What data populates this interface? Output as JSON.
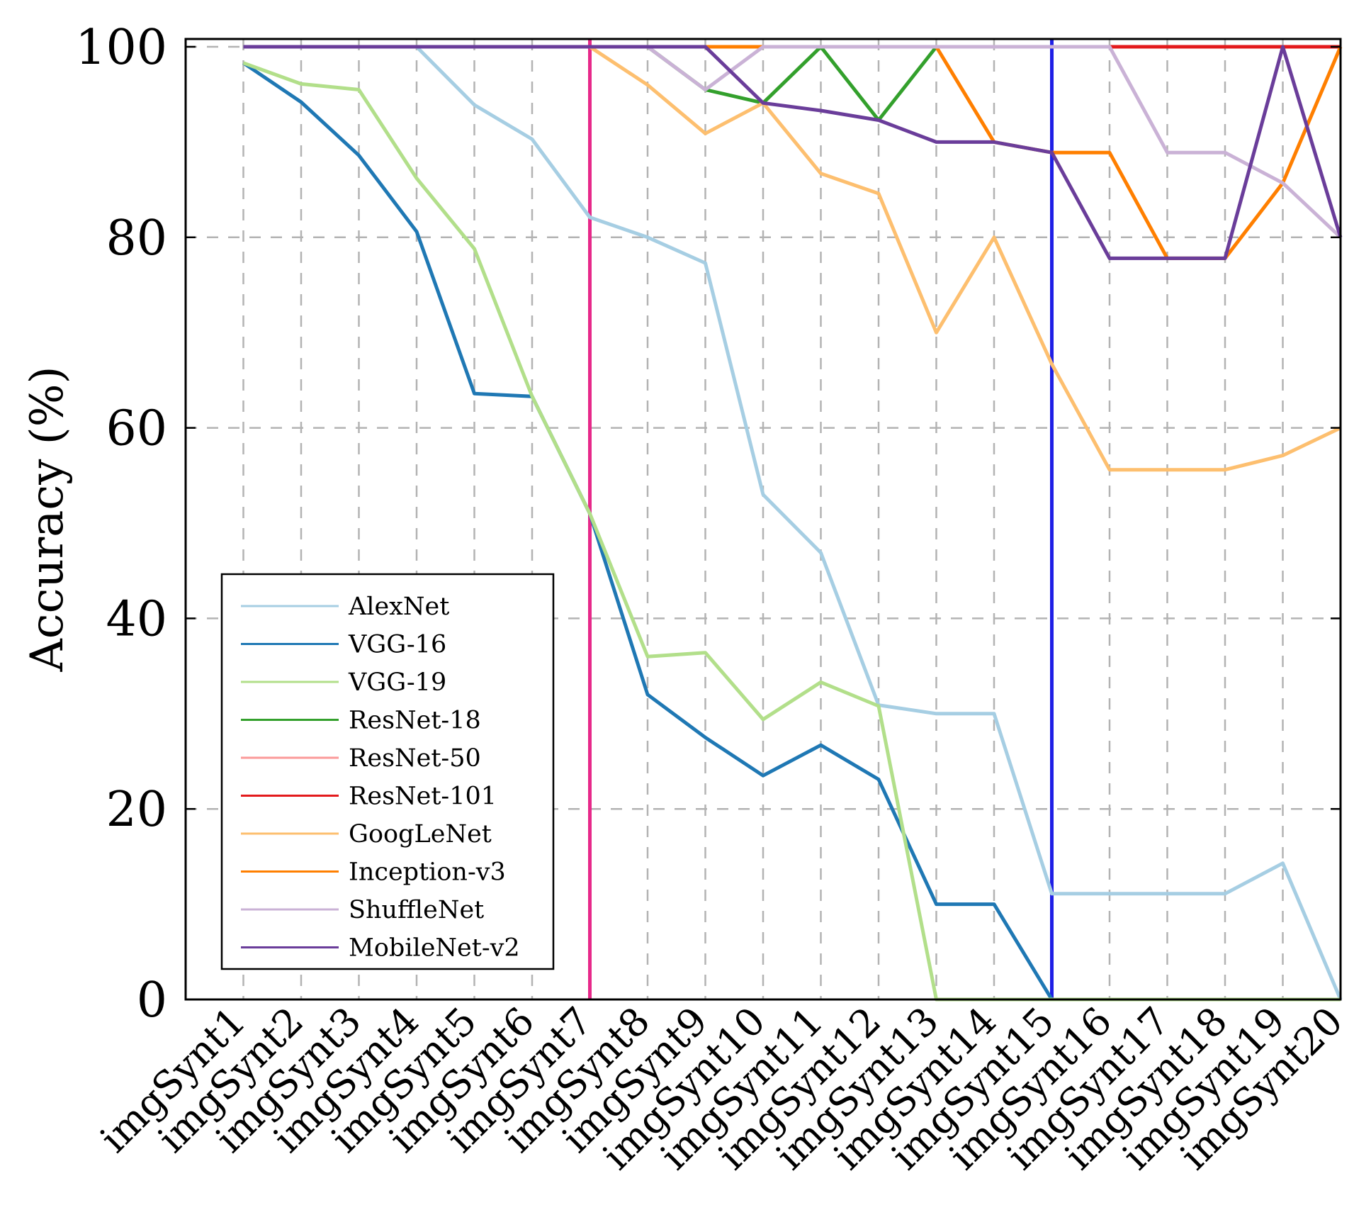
{
  "chart_data": {
    "type": "line",
    "title": "",
    "xlabel": "",
    "ylabel": "Accuracy (%)",
    "ylim": [
      0,
      100
    ],
    "yticks": [
      0,
      20,
      40,
      60,
      80,
      100
    ],
    "grid": true,
    "legend_position": "lower-left",
    "categories": [
      "imgSynt1",
      "imgSynt2",
      "imgSynt3",
      "imgSynt4",
      "imgSynt5",
      "imgSynt6",
      "imgSynt7",
      "imgSynt8",
      "imgSynt9",
      "imgSynt10",
      "imgSynt11",
      "imgSynt12",
      "imgSynt13",
      "imgSynt14",
      "imgSynt15",
      "imgSynt16",
      "imgSynt17",
      "imgSynt18",
      "imgSynt19",
      "imgSynt20"
    ],
    "vertical_markers": [
      {
        "x_index": 7,
        "color": "#e7298a"
      },
      {
        "x_index": 15,
        "color": "#1f1fe6"
      }
    ],
    "series": [
      {
        "name": "AlexNet",
        "color": "#a6cee3",
        "start_index": 1,
        "values": [
          100,
          100,
          100,
          100,
          93.9,
          90.3,
          82.1,
          80,
          77.3,
          53,
          46.9,
          30.9,
          30,
          30,
          11.1,
          11.1,
          11.1,
          11.1,
          14.3,
          0
        ]
      },
      {
        "name": "VGG-16",
        "color": "#1f78b4",
        "start_index": 1,
        "values": [
          98.3,
          94.2,
          88.6,
          80.6,
          63.6,
          63.3,
          51,
          32,
          27.5,
          23.5,
          26.7,
          23.1,
          10,
          10,
          0,
          0,
          0,
          0,
          0,
          0
        ]
      },
      {
        "name": "VGG-19",
        "color": "#b2df8a",
        "start_index": 1,
        "values": [
          98.3,
          96.1,
          95.5,
          86.2,
          78.8,
          63.3,
          51,
          36,
          36.4,
          29.4,
          33.3,
          30.8,
          0,
          0,
          0,
          0,
          0,
          0,
          0,
          0
        ]
      },
      {
        "name": "ResNet-18",
        "color": "#33a02c",
        "start_index": 1,
        "values": [
          100,
          100,
          100,
          100,
          100,
          100,
          100,
          100,
          95.5,
          94.1,
          100,
          92.3,
          100,
          100,
          100,
          100,
          100,
          100,
          100,
          100
        ]
      },
      {
        "name": "ResNet-50",
        "color": "#fb9a99",
        "start_index": 1,
        "values": [
          100,
          100,
          100,
          100,
          100,
          100,
          100,
          100,
          100,
          100,
          100,
          100,
          100,
          100,
          100,
          100,
          100,
          100,
          100,
          100
        ]
      },
      {
        "name": "ResNet-101",
        "color": "#e31a1c",
        "start_index": 1,
        "values": [
          100,
          100,
          100,
          100,
          100,
          100,
          100,
          100,
          100,
          100,
          100,
          100,
          100,
          100,
          100,
          100,
          100,
          100,
          100,
          100
        ]
      },
      {
        "name": "GoogLeNet",
        "color": "#fdbf6f",
        "start_index": 1,
        "values": [
          100,
          100,
          100,
          100,
          100,
          100,
          100,
          96,
          90.9,
          94.1,
          86.7,
          84.6,
          70,
          80,
          66.7,
          55.6,
          55.6,
          55.6,
          57.1,
          60
        ]
      },
      {
        "name": "Inception-v3",
        "color": "#ff7f00",
        "start_index": 1,
        "values": [
          100,
          100,
          100,
          100,
          100,
          100,
          100,
          100,
          100,
          100,
          100,
          100,
          100,
          90,
          88.9,
          88.9,
          77.8,
          77.8,
          85.7,
          100
        ]
      },
      {
        "name": "ShuffleNet",
        "color": "#cab2d6",
        "start_index": 1,
        "values": [
          100,
          100,
          100,
          100,
          100,
          100,
          100,
          100,
          95.5,
          100,
          100,
          100,
          100,
          100,
          100,
          100,
          88.9,
          88.9,
          85.7,
          80
        ]
      },
      {
        "name": "MobileNet-v2",
        "color": "#6a3d9a",
        "start_index": 1,
        "values": [
          100,
          100,
          100,
          100,
          100,
          100,
          100,
          100,
          100,
          94.1,
          93.3,
          92.3,
          90,
          90,
          88.9,
          77.8,
          77.8,
          77.8,
          100,
          80
        ]
      }
    ]
  }
}
